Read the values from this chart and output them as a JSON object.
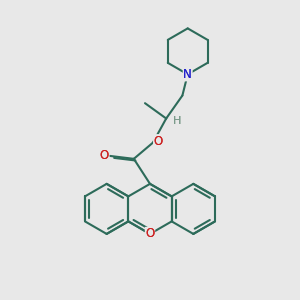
{
  "background_color": "#e8e8e8",
  "bond_color": "#2d6b5a",
  "bond_width": 1.5,
  "N_color": "#2222cc",
  "O_color": "#cc2222",
  "H_color": "#7a9a8a",
  "figsize": [
    3.0,
    3.0
  ],
  "dpi": 100,
  "xlim": [
    0,
    10
  ],
  "ylim": [
    0,
    10
  ]
}
